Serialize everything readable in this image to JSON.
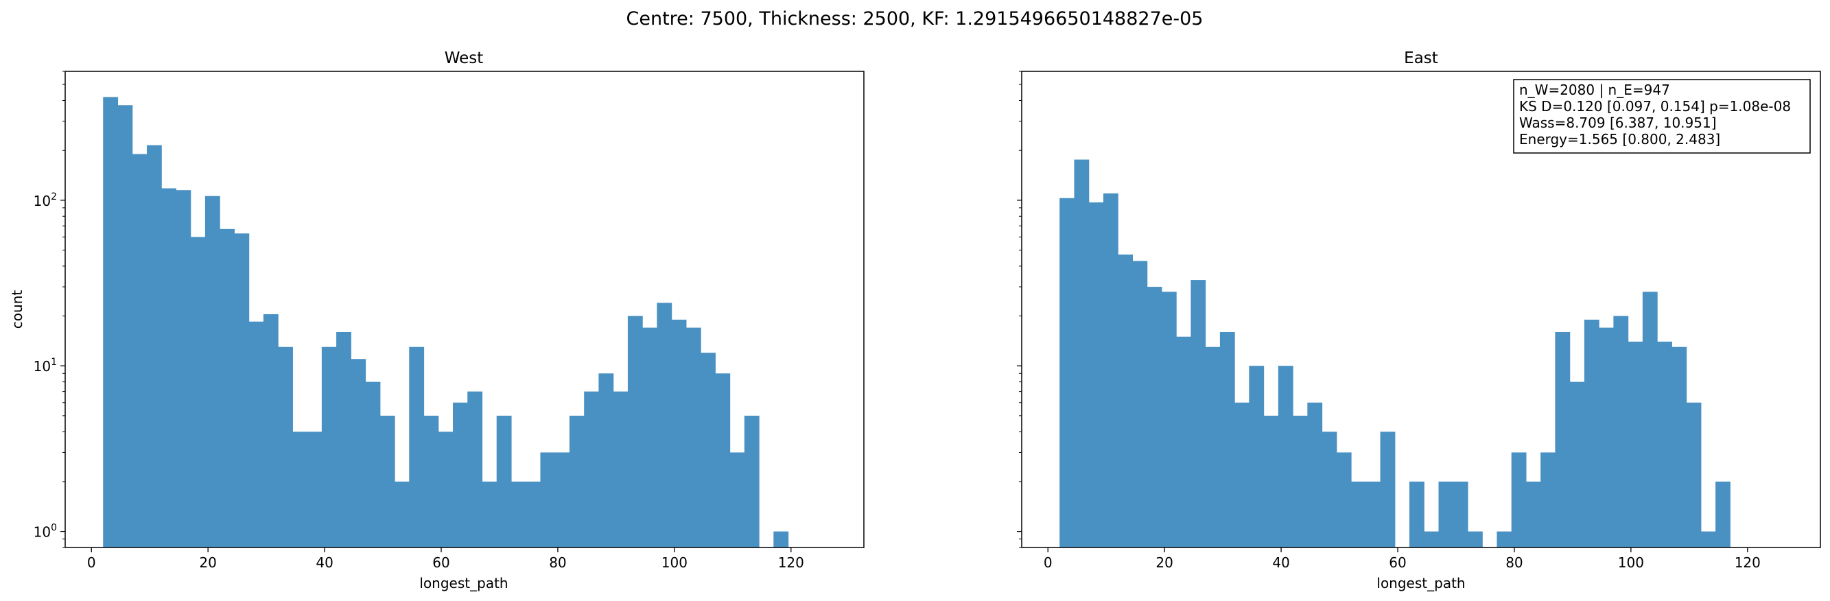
{
  "suptitle": "Centre: 7500, Thickness: 2500, KF: 1.2915496650148827e-05",
  "chart_data": [
    {
      "type": "bar",
      "subtype": "histogram",
      "title": "West",
      "xlabel": "longest_path",
      "ylabel": "count",
      "yscale": "log",
      "xlim": [
        -4.5,
        132.5
      ],
      "ylim": [
        0.8,
        600
      ],
      "xticks": [
        "0",
        "20",
        "40",
        "60",
        "80",
        "100",
        "120"
      ],
      "yticks": [
        "10^0",
        "10^1",
        "10^2"
      ],
      "bin_start": 2,
      "bin_width": 2.5,
      "color": "#4a91c3",
      "values": [
        420,
        375,
        190,
        215,
        118,
        115,
        60,
        106,
        67,
        63,
        18.5,
        20.5,
        13,
        4,
        4,
        13,
        16,
        11,
        8,
        5,
        2,
        13,
        5,
        4,
        6,
        7,
        2,
        5,
        2,
        2,
        3,
        3,
        5,
        7,
        9,
        7,
        20,
        17,
        24,
        19,
        17,
        12,
        9,
        3,
        5,
        0,
        1
      ]
    },
    {
      "type": "bar",
      "subtype": "histogram",
      "title": "East",
      "xlabel": "longest_path",
      "ylabel": "",
      "yscale": "log",
      "xlim": [
        -4.5,
        132.5
      ],
      "ylim": [
        0.8,
        600
      ],
      "xticks": [
        "0",
        "20",
        "40",
        "60",
        "80",
        "100",
        "120"
      ],
      "bin_start": 2,
      "bin_width": 2.5,
      "color": "#4a91c3",
      "values": [
        103,
        176,
        97,
        110,
        47,
        43,
        30,
        28,
        15,
        33,
        13,
        16,
        6,
        10,
        5,
        10,
        5,
        6,
        4,
        3,
        2,
        2,
        4,
        0,
        2,
        1,
        2,
        2,
        1,
        0,
        1,
        3,
        2,
        3,
        16,
        8,
        19,
        17,
        20,
        14,
        28,
        14,
        13,
        6,
        1,
        2
      ],
      "annotation": [
        "n_W=2080 | n_E=947",
        "KS D=0.120 [0.097, 0.154]  p=1.08e-08",
        "Wass=8.709 [6.387, 10.951]",
        "Energy=1.565 [0.800, 2.483]"
      ]
    }
  ]
}
